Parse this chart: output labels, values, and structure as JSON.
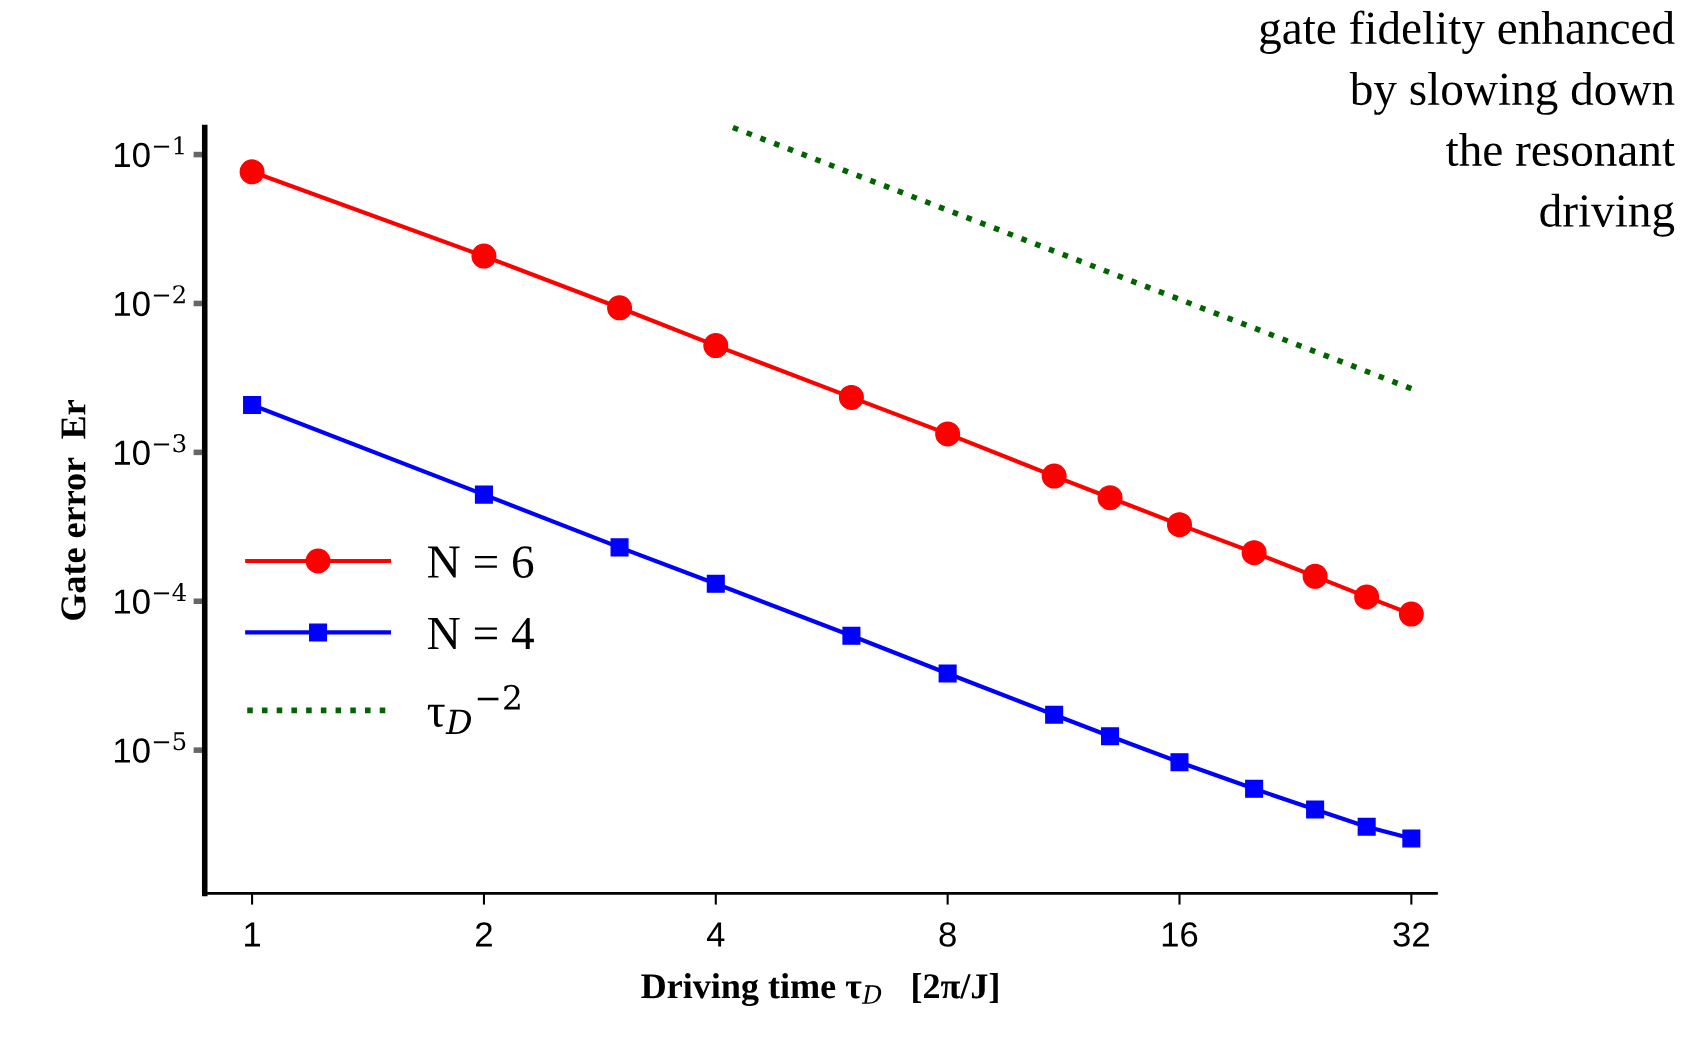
{
  "chart_data": {
    "type": "line",
    "xlabel": "Driving time τ$_{D}$   [2π/J]",
    "ylabel": "Gate error  Er",
    "annotations": [
      "gate fidelity enhanced\nby slowing down\nthe resonant\ndriving"
    ],
    "log": "xy",
    "grid": false,
    "legend": "left",
    "xlim": [
      0.868,
      34.5
    ],
    "ylim": [
      1.09e-06,
      0.152
    ],
    "xticks": [
      1,
      2,
      4,
      8,
      16,
      32
    ],
    "yticks": [
      {
        "value": 0.1,
        "label": "10$^{−1}$"
      },
      {
        "value": 0.01,
        "label": "10$^{−2}$"
      },
      {
        "value": 0.001,
        "label": "10$^{−3}$"
      },
      {
        "value": 0.0001,
        "label": "10$^{−4}$"
      },
      {
        "value": 1e-05,
        "label": "10$^{−5}$"
      }
    ],
    "series": [
      {
        "name": "N = 6",
        "color": "#ff0000",
        "marker": "circle",
        "line_style": "solid",
        "x": [
          1,
          2,
          3,
          4,
          6,
          8,
          11,
          13,
          16,
          20,
          24,
          28,
          32
        ],
        "values": [
          0.0766,
          0.0208,
          0.00935,
          0.00521,
          0.00234,
          0.00133,
          0.000693,
          0.000496,
          0.000327,
          0.000212,
          0.000147,
          0.000107,
          8.2e-05
        ]
      },
      {
        "name": "N = 4",
        "color": "#0000ff",
        "marker": "square",
        "line_style": "solid",
        "x": [
          1,
          2,
          3,
          4,
          6,
          8,
          11,
          13,
          16,
          20,
          24,
          28,
          32
        ],
        "values": [
          0.00208,
          0.00052,
          0.00023,
          0.000131,
          5.86e-05,
          3.27e-05,
          1.73e-05,
          1.24e-05,
          8.3e-06,
          5.5e-06,
          3.99e-06,
          3.06e-06,
          2.55e-06
        ]
      },
      {
        "name": "τ$_{D}$$^{−2}$",
        "color": "#006400",
        "marker": "none",
        "line_style": "dotted",
        "x": [
          4.21,
          32
        ],
        "values": [
          0.152,
          0.00268
        ]
      }
    ]
  }
}
